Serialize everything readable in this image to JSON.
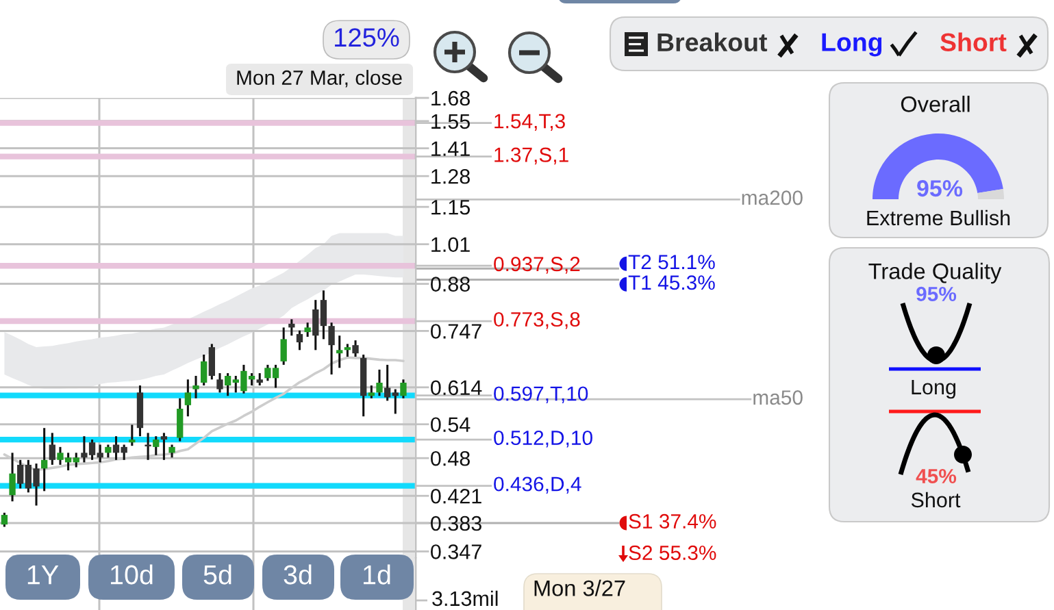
{
  "chart_data": [
    {
      "type": "candlestick",
      "categories": [
        null,
        null,
        null,
        null,
        null,
        null,
        null,
        null,
        null,
        null,
        null,
        null,
        null,
        null,
        null,
        null,
        null,
        null,
        null,
        null,
        null,
        null,
        null,
        null,
        null,
        null,
        null,
        null,
        null,
        null,
        null,
        null,
        null,
        null,
        null,
        null,
        null,
        null,
        null,
        null,
        null,
        null,
        null,
        null,
        null,
        null,
        null,
        null,
        null,
        null,
        null
      ],
      "ohlc": [
        [
          0.381,
          0.397,
          0.378,
          0.394
        ],
        [
          0.422,
          0.489,
          0.413,
          0.455
        ],
        [
          0.469,
          0.477,
          0.432,
          0.439
        ],
        [
          0.469,
          0.477,
          0.426,
          0.432
        ],
        [
          0.463,
          0.471,
          0.407,
          0.435
        ],
        [
          0.463,
          0.533,
          0.428,
          0.477
        ],
        [
          0.503,
          0.524,
          0.469,
          0.477
        ],
        [
          0.477,
          0.499,
          0.469,
          0.489
        ],
        [
          0.473,
          0.489,
          0.46,
          0.481
        ],
        [
          0.473,
          0.489,
          0.465,
          0.481
        ],
        [
          0.489,
          0.518,
          0.473,
          0.481
        ],
        [
          0.507,
          0.512,
          0.477,
          0.485
        ],
        [
          0.489,
          0.503,
          0.473,
          0.481
        ],
        [
          0.489,
          0.503,
          0.481,
          0.499
        ],
        [
          0.503,
          0.518,
          0.477,
          0.489
        ],
        [
          0.499,
          0.503,
          0.477,
          0.489
        ],
        [
          0.507,
          0.539,
          0.501,
          0.512
        ],
        [
          0.603,
          0.618,
          0.518,
          0.533
        ],
        [
          0.503,
          0.524,
          0.477,
          0.5
        ],
        [
          0.499,
          0.518,
          0.485,
          0.512
        ],
        [
          0.518,
          0.524,
          0.477,
          0.512
        ],
        [
          0.489,
          0.503,
          0.481,
          0.499
        ],
        [
          0.515,
          0.591,
          0.509,
          0.57
        ],
        [
          0.577,
          0.631,
          0.555,
          0.603
        ],
        [
          0.61,
          0.639,
          0.591,
          0.618
        ],
        [
          0.624,
          0.688,
          0.618,
          0.672
        ],
        [
          0.706,
          0.714,
          0.631,
          0.639
        ],
        [
          0.631,
          0.645,
          0.603,
          0.61
        ],
        [
          0.618,
          0.645,
          0.596,
          0.639
        ],
        [
          0.624,
          0.639,
          0.603,
          0.631
        ],
        [
          0.606,
          0.664,
          0.601,
          0.65
        ],
        [
          0.631,
          0.645,
          0.618,
          0.639
        ],
        [
          0.631,
          0.645,
          0.618,
          0.624
        ],
        [
          0.634,
          0.664,
          0.628,
          0.657
        ],
        [
          0.634,
          0.664,
          0.613,
          0.657
        ],
        [
          0.672,
          0.756,
          0.664,
          0.726
        ],
        [
          0.766,
          0.778,
          0.735,
          0.756
        ],
        [
          0.739,
          0.748,
          0.699,
          0.718
        ],
        [
          0.744,
          0.769,
          0.732,
          0.756
        ],
        [
          0.805,
          0.832,
          0.699,
          0.735
        ],
        [
          0.832,
          0.86,
          0.726,
          0.76
        ],
        [
          0.76,
          0.769,
          0.642,
          0.711
        ],
        [
          0.691,
          0.735,
          0.657,
          0.699
        ],
        [
          0.699,
          0.714,
          0.683,
          0.706
        ],
        [
          0.711,
          0.723,
          0.683,
          0.691
        ],
        [
          0.68,
          0.688,
          0.555,
          0.596
        ],
        [
          0.596,
          0.618,
          0.591,
          0.603
        ],
        [
          0.603,
          0.653,
          0.596,
          0.624
        ],
        [
          0.613,
          0.664,
          0.586,
          0.593
        ],
        [
          0.603,
          0.61,
          0.56,
          0.596
        ],
        [
          0.596,
          0.631,
          0.591,
          0.624
        ]
      ],
      "series": [
        {
          "type": "line",
          "color": "#e8e9eb",
          "values": [
            null,
            null,
            null,
            null,
            null,
            null,
            null,
            null,
            null,
            null,
            null,
            null,
            null,
            null,
            null,
            null,
            null,
            null,
            null,
            null,
            null,
            null,
            null,
            null,
            null,
            null,
            null,
            null,
            null,
            null,
            null,
            null,
            null,
            null,
            null,
            null,
            null,
            null,
            null,
            null,
            null,
            null,
            null,
            null,
            null,
            null,
            null,
            null,
            null,
            null,
            null
          ],
          "upper": [
            0.744,
            0.735,
            0.725,
            0.714,
            0.706,
            0.708,
            0.709,
            0.713,
            0.716,
            0.72,
            0.723,
            0.726,
            0.73,
            0.732,
            0.735,
            0.739,
            0.74,
            0.744,
            0.748,
            0.753,
            0.756,
            0.764,
            0.771,
            0.778,
            0.788,
            0.799,
            0.809,
            0.82,
            0.83,
            0.842,
            0.854,
            0.866,
            0.875,
            0.889,
            0.902,
            0.915,
            0.933,
            0.953,
            0.974,
            0.997,
            1.01,
            1.04,
            1.05,
            1.05,
            1.05,
            1.05,
            1.05,
            1.05,
            1.05,
            1.04,
            1.04
          ],
          "lower": [
            0.642,
            0.634,
            0.627,
            0.619,
            0.613,
            0.611,
            0.611,
            0.611,
            0.612,
            0.612,
            0.613,
            0.616,
            0.621,
            0.624,
            0.625,
            0.627,
            0.628,
            0.63,
            0.634,
            0.639,
            0.642,
            0.651,
            0.659,
            0.668,
            0.676,
            0.684,
            0.694,
            0.704,
            0.713,
            0.723,
            0.733,
            0.742,
            0.753,
            0.764,
            0.775,
            0.788,
            0.809,
            0.822,
            0.834,
            0.848,
            0.86,
            0.877,
            0.887,
            0.898,
            0.909,
            0.909,
            0.907,
            0.904,
            0.902,
            0.9,
            0.9
          ]
        },
        {
          "type": "line",
          "color": "#cdcdcd",
          "values": [
            0.486,
            0.479,
            0.472,
            0.465,
            0.461,
            0.462,
            0.464,
            0.466,
            0.469,
            0.47,
            0.471,
            0.472,
            0.473,
            0.475,
            0.478,
            0.479,
            0.481,
            0.482,
            0.483,
            0.485,
            0.486,
            0.488,
            0.492,
            0.495,
            0.505,
            0.515,
            0.527,
            0.534,
            0.541,
            0.547,
            0.556,
            0.564,
            0.574,
            0.583,
            0.592,
            0.6,
            0.613,
            0.625,
            0.634,
            0.645,
            0.654,
            0.667,
            0.675,
            0.681,
            0.68,
            0.68,
            0.678,
            0.676,
            0.675,
            0.675,
            0.673
          ]
        }
      ],
      "ylim": [
        0.34,
        1.68
      ],
      "yticks": [
        0.347,
        0.383,
        0.421,
        0.48,
        0.54,
        0.614,
        0.747,
        0.88,
        1.01,
        1.15,
        1.28,
        1.41,
        1.55,
        1.68
      ],
      "log": "y",
      "grid": "y",
      "ref_lines": [
        {
          "axis": "y",
          "value": 1.54,
          "label": "1.54,T,3",
          "color": "#e8c3db"
        },
        {
          "axis": "y",
          "value": 1.37,
          "label": "1.37,S,1",
          "color": "#e8c3db"
        },
        {
          "axis": "y",
          "value": 1.18,
          "label": "ma200",
          "color": "#c2c2c2"
        },
        {
          "axis": "y",
          "value": 0.937,
          "label": "0.937,S,2",
          "color": "#e8c3db"
        },
        {
          "axis": "y",
          "value": 0.928,
          "label": "T2 51.1%"
        },
        {
          "axis": "y",
          "value": 0.893,
          "label": "T1 45.3%"
        },
        {
          "axis": "y",
          "value": 0.773,
          "label": "0.773,S,8",
          "color": "#e8c3db"
        },
        {
          "axis": "y",
          "value": 0.597,
          "label": "0.597,T,10",
          "color": "#12dafc"
        },
        {
          "axis": "y",
          "value": 0.589,
          "label": "ma50",
          "color": "#c2c2c2"
        },
        {
          "axis": "y",
          "value": 0.512,
          "label": "0.512,D,10",
          "color": "#12dafc"
        },
        {
          "axis": "y",
          "value": 0.436,
          "label": "0.436,D,4",
          "color": "#12dafc"
        },
        {
          "axis": "y",
          "value": 0.383,
          "label": "S1 37.4%"
        }
      ],
      "annotations": [
        "125%",
        "Mon 27 Mar, close",
        "1Y",
        "10d",
        "5d",
        "3d",
        "1d",
        "Mon 3/27",
        "3.13mil",
        "S2 55.3%"
      ]
    },
    {
      "type": "other",
      "annotations": [
        "Breakout",
        "Long",
        "Short"
      ]
    },
    {
      "type": "donut",
      "title": "Overall",
      "categories": [
        null,
        null
      ],
      "values": [
        95,
        5
      ],
      "colors": [
        "#6b6bff",
        "#d9d9d9"
      ],
      "value_labels": [
        "95%",
        null
      ],
      "annotations": [
        "Extreme Bullish"
      ]
    },
    {
      "type": "other",
      "title": "Trade Quality",
      "annotations": [
        "95%",
        "Long",
        "45%",
        "Short"
      ]
    }
  ]
}
